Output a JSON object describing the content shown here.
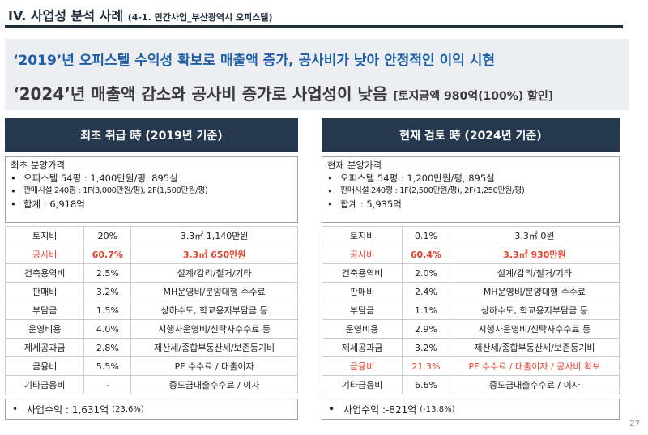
{
  "header": {
    "title": "IV. 사업성 분석 사례",
    "subtitle": "(4-1. 민간사업_부산광역시 오피스텔)"
  },
  "summary": {
    "line1": "‘2019’년 오피스텔 수익성 확보로 매출액 증가, 공사비가 낮아 안정적인 이익 시현",
    "line2_main": "‘2024’년 매출액 감소와 공사비 증가로 사업성이 낮음",
    "line2_note": "[토지금액 980억(100%) 할인]"
  },
  "left": {
    "header": "최초 취급 時 (2019년 기준)",
    "price_title": "최초 분양가격",
    "bullets": [
      "오피스텔 54평 : 1,400만원/평, 895실",
      "판매시설 240평 : 1F(3,000만원/평), 2F(1,500만원/평)",
      "합계 : 6,918억"
    ],
    "rows": [
      {
        "name": "토지비",
        "rate": "20%",
        "desc": "3.3㎡ 1,140만원",
        "highlight": false
      },
      {
        "name": "공사비",
        "rate": "60.7%",
        "desc": "3.3㎡ 650만원",
        "highlight": true
      },
      {
        "name": "건축용역비",
        "rate": "2.5%",
        "desc": "설계/감리/철거/기타",
        "highlight": false
      },
      {
        "name": "판매비",
        "rate": "3.2%",
        "desc": "MH운영비/분양대행 수수료",
        "highlight": false
      },
      {
        "name": "부담금",
        "rate": "1.5%",
        "desc": "상하수도, 학교용지부담금 등",
        "highlight": false
      },
      {
        "name": "운영비용",
        "rate": "4.0%",
        "desc": "시행사운영비/신탁사수수료 등",
        "highlight": false
      },
      {
        "name": "제세공과금",
        "rate": "2.8%",
        "desc": "제산세/종합부동산세/보존등기비",
        "highlight": false
      },
      {
        "name": "금융비",
        "rate": "5.5%",
        "desc": "PF 수수료 / 대출이자",
        "highlight": false
      },
      {
        "name": "기타금융비",
        "rate": "-",
        "desc": "중도금대출수수료 / 이자",
        "highlight": false
      }
    ],
    "profit_label": "사업수익 : 1,631억",
    "profit_pct": "(23.6%)"
  },
  "right": {
    "header": "현재 검토 時 (2024년 기준)",
    "price_title": "현재 분양가격",
    "bullets": [
      "오피스텔 54평 : 1,200만원/평, 895실",
      "판매시설 240평 : 1F(2,500만원/평), 2F(1,250만원/평)",
      "합계 : 5,935억"
    ],
    "rows": [
      {
        "name": "토지비",
        "rate": "0.1%",
        "desc": "3.3㎡ 0원",
        "highlight": false
      },
      {
        "name": "공사비",
        "rate": "60.4%",
        "desc": "3.3㎡ 930만원",
        "highlight": true
      },
      {
        "name": "건축용역비",
        "rate": "2.0%",
        "desc": "설계/감리/철거/기타",
        "highlight": false
      },
      {
        "name": "판매비",
        "rate": "2.4%",
        "desc": "MH운영비/분양대행 수수료",
        "highlight": false
      },
      {
        "name": "부담금",
        "rate": "1.1%",
        "desc": "상하수도, 학교용지부담금 등",
        "highlight": false
      },
      {
        "name": "운영비용",
        "rate": "2.9%",
        "desc": "시행사운영비/신탁사수수료 등",
        "highlight": false
      },
      {
        "name": "제세공과금",
        "rate": "3.2%",
        "desc": "제산세/종합부동산세/보존등기비",
        "highlight": false
      },
      {
        "name": "금융비",
        "rate": "21.3%",
        "desc": "PF 수수료 / 대출이자 / 공사비 확보",
        "highlight": true
      },
      {
        "name": "기타금융비",
        "rate": "6.6%",
        "desc": "중도금대출수수료 / 이자",
        "highlight": false
      }
    ],
    "profit_label": "사업수익 :-821억",
    "profit_pct": "(-13.8%)"
  },
  "page_number": "27",
  "colors": {
    "header_bg": "#25384d",
    "title_rule": "#1f2d3d",
    "summary_blue": "#1f5fa8",
    "highlight_red": "#e0442f",
    "summary_bg": "#eceef1"
  }
}
